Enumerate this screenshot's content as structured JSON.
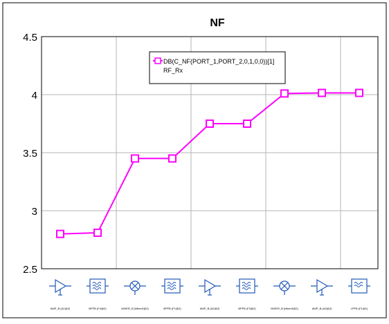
{
  "chart_data": {
    "type": "line",
    "title": "NF",
    "xlabel": "",
    "ylabel": "",
    "ylim": [
      2.5,
      4.5
    ],
    "yticks": [
      "4.5",
      "4",
      "3.5",
      "3",
      "2.5"
    ],
    "grid": true,
    "legend_position": "top-center",
    "legend": {
      "series_label": "DB(C_NF(PORT_1,PORT_2,0,1,0,0))[1]",
      "sub_label": "RF_Rx"
    },
    "x": [
      1,
      2,
      3,
      4,
      5,
      6,
      7,
      8,
      9
    ],
    "series": [
      {
        "name": "DB(C_NF(PORT_1,PORT_2,0,1,0,0))[1]",
        "values": [
          2.8,
          2.81,
          3.45,
          3.45,
          3.75,
          3.75,
          4.01,
          4.015,
          4.015
        ],
        "color": "#ff00ff"
      }
    ],
    "stages": [
      {
        "icon": "amplifier-icon",
        "label": "AMP_B (A1@2)"
      },
      {
        "icon": "bandpass-filter-icon",
        "label": "BPFB (F4@2)"
      },
      {
        "icon": "mixer-icon",
        "label": "MIXER_B (Mixer2@2)"
      },
      {
        "icon": "bandpass-filter-icon",
        "label": "BPFB (F1@2)"
      },
      {
        "icon": "amplifier-icon",
        "label": "AMP_B (A2@2)"
      },
      {
        "icon": "bandpass-filter-icon",
        "label": "BPFB (F3@2)"
      },
      {
        "icon": "mixer-icon",
        "label": "MIXER_B (Mixer3@2)"
      },
      {
        "icon": "amplifier-icon",
        "label": "AMP_B (A3@2)"
      },
      {
        "icon": "lowpass-filter-icon",
        "label": "LPFB (F1@1)"
      }
    ]
  }
}
